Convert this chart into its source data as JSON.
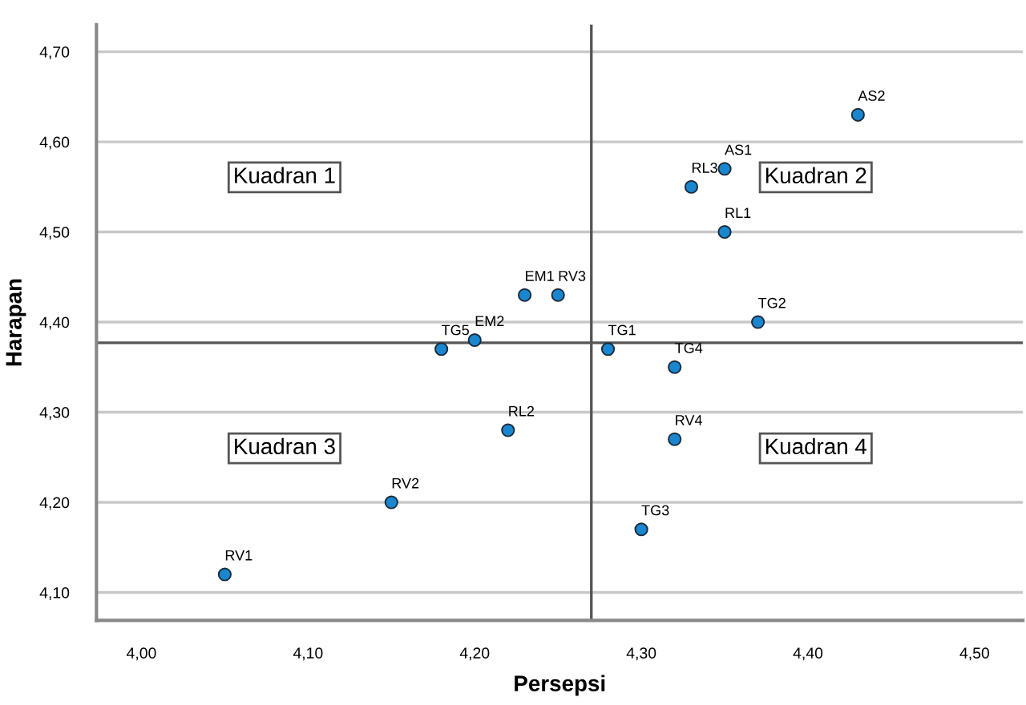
{
  "chart_data": {
    "type": "scatter",
    "xlabel": "Persepsi",
    "ylabel": "Harapan",
    "x": [
      4.05,
      4.15,
      4.18,
      4.2,
      4.22,
      4.23,
      4.25,
      4.28,
      4.3,
      4.32,
      4.32,
      4.33,
      4.35,
      4.35,
      4.37,
      4.43
    ],
    "values": [
      4.12,
      4.2,
      4.37,
      4.38,
      4.28,
      4.43,
      4.43,
      4.37,
      4.17,
      4.35,
      4.27,
      4.55,
      4.57,
      4.5,
      4.4,
      4.63
    ],
    "color": "#1a86d0",
    "marker": "circle",
    "grid": "y",
    "xlim": [
      3.973,
      4.529
    ],
    "ylim": [
      4.069,
      4.73
    ],
    "xticks": [
      {
        "value": 4.0,
        "label": "4,00"
      },
      {
        "value": 4.1,
        "label": "4,10"
      },
      {
        "value": 4.2,
        "label": "4,20"
      },
      {
        "value": 4.3,
        "label": "4,30"
      },
      {
        "value": 4.4,
        "label": "4,40"
      },
      {
        "value": 4.5,
        "label": "4,50"
      }
    ],
    "yticks": [
      {
        "value": 4.1,
        "label": "4,10"
      },
      {
        "value": 4.2,
        "label": "4,20"
      },
      {
        "value": 4.3,
        "label": "4,30"
      },
      {
        "value": 4.4,
        "label": "4,40"
      },
      {
        "value": 4.5,
        "label": "4,50"
      },
      {
        "value": 4.6,
        "label": "4,60"
      },
      {
        "value": 4.7,
        "label": "4,70"
      }
    ],
    "ref_lines": [
      {
        "axis": "x",
        "value": 4.27,
        "color": "#555555"
      },
      {
        "axis": "y",
        "value": 4.377,
        "color": "#555555"
      }
    ],
    "annotations": [
      {
        "text": "RV1",
        "x": 4.05,
        "y": 4.12
      },
      {
        "text": "RV2",
        "x": 4.15,
        "y": 4.2
      },
      {
        "text": "TG5",
        "x": 4.18,
        "y": 4.37
      },
      {
        "text": "EM2",
        "x": 4.2,
        "y": 4.38
      },
      {
        "text": "RL2",
        "x": 4.22,
        "y": 4.28
      },
      {
        "text": "EM1",
        "x": 4.23,
        "y": 4.43
      },
      {
        "text": "RV3",
        "x": 4.25,
        "y": 4.43
      },
      {
        "text": "TG1",
        "x": 4.28,
        "y": 4.37
      },
      {
        "text": "TG3",
        "x": 4.3,
        "y": 4.17
      },
      {
        "text": "TG4",
        "x": 4.32,
        "y": 4.35
      },
      {
        "text": "RV4",
        "x": 4.32,
        "y": 4.27
      },
      {
        "text": "RL3",
        "x": 4.33,
        "y": 4.55
      },
      {
        "text": "AS1",
        "x": 4.35,
        "y": 4.57
      },
      {
        "text": "RL1",
        "x": 4.35,
        "y": 4.5
      },
      {
        "text": "TG2",
        "x": 4.37,
        "y": 4.4
      },
      {
        "text": "AS2",
        "x": 4.43,
        "y": 4.63
      },
      "Kuadran 1",
      "Kuadran 2",
      "Kuadran 3",
      "Kuadran 4"
    ]
  }
}
